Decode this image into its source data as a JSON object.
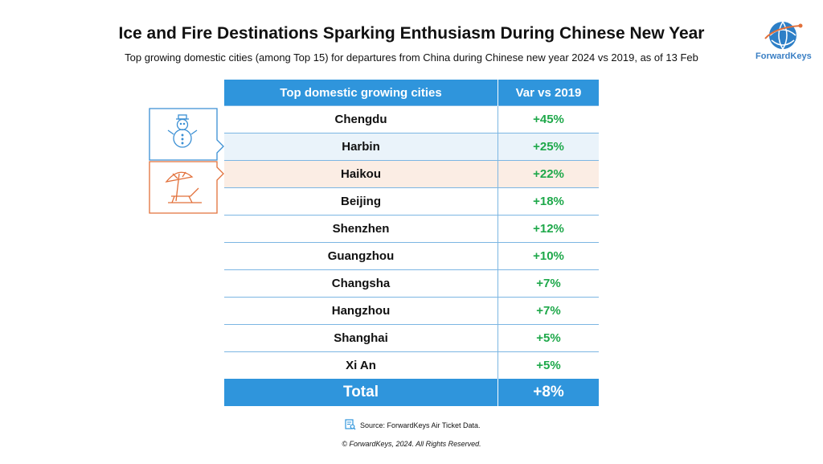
{
  "header": {
    "title": "Ice and Fire Destinations Sparking Enthusiasm During Chinese New Year",
    "subtitle": "Top growing domestic cities (among Top 15) for departures from China during Chinese new year 2024 vs 2019, as of 13 Feb"
  },
  "logo": {
    "text": "ForwardKeys"
  },
  "table": {
    "headers": [
      "Top domestic growing cities",
      "Var vs 2019"
    ],
    "rows": [
      {
        "city": "Chengdu",
        "var": "+45%"
      },
      {
        "city": "Harbin",
        "var": "+25%"
      },
      {
        "city": "Haikou",
        "var": "+22%"
      },
      {
        "city": "Beijing",
        "var": "+18%"
      },
      {
        "city": "Shenzhen",
        "var": "+12%"
      },
      {
        "city": "Guangzhou",
        "var": "+10%"
      },
      {
        "city": "Changsha",
        "var": "+7%"
      },
      {
        "city": "Hangzhou",
        "var": "+7%"
      },
      {
        "city": "Shanghai",
        "var": "+5%"
      },
      {
        "city": "Xi An",
        "var": "+5%"
      }
    ],
    "total": {
      "city": "Total",
      "var": "+8%"
    }
  },
  "callouts": {
    "ice_icon": "snowman-icon",
    "fire_icon": "beach-umbrella-icon",
    "ice_color": "#3a8fd4",
    "fire_color": "#e2703a"
  },
  "footer": {
    "source": "Source: ForwardKeys Air Ticket Data.",
    "copyright": "© ForwardKeys, 2024. All Rights Reserved."
  },
  "colors": {
    "header_blue": "#2f95dc",
    "positive_green": "#1ea84a",
    "ice_row_bg": "#eaf3fa",
    "fire_row_bg": "#fbede4"
  }
}
